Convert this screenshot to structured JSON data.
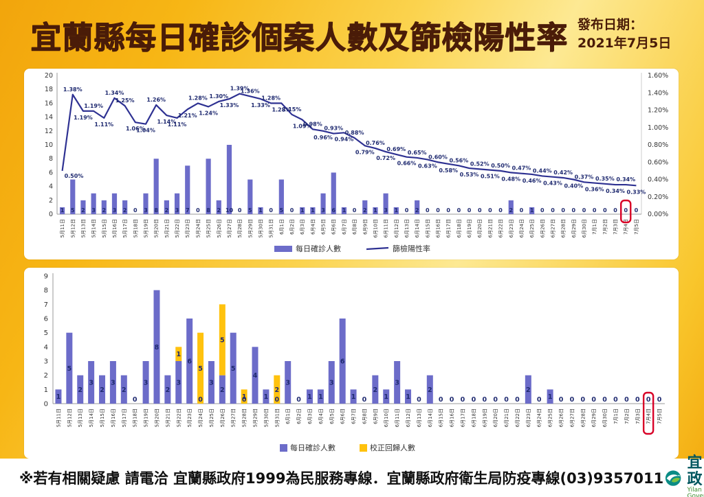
{
  "header": {
    "title": "宜蘭縣每日確診個案人數及篩檢陽性率",
    "publish_label": "發布日期：",
    "publish_date": "2021年7月5日"
  },
  "footer": {
    "note": "※若有相關疑慮 請電洽  宜蘭縣政府1999為民服務專線．宜蘭縣政府衛生局防疫專線(03)9357011",
    "logo_title": "宜蘭縣政府",
    "logo_subtitle": "Yilan County Government"
  },
  "colors": {
    "bar_purple": "#6C6CC9",
    "bar_yellow": "#FFC20E",
    "line_navy": "#2E3192",
    "highlight_red": "#D80027",
    "title_brown": "#4A1C08",
    "label_navy": "#1F2A70",
    "axis_text": "#333333"
  },
  "chart_data": [
    {
      "type": "bar",
      "subtype": "bar+line dual axis",
      "categories": [
        "5月11日",
        "5月12日",
        "5月13日",
        "5月14日",
        "5月15日",
        "5月16日",
        "5月17日",
        "5月18日",
        "5月19日",
        "5月20日",
        "5月21日",
        "5月22日",
        "5月23日",
        "5月24日",
        "5月25日",
        "5月26日",
        "5月27日",
        "5月28日",
        "5月29日",
        "5月30日",
        "5月31日",
        "6月1日",
        "6月2日",
        "6月3日",
        "6月4日",
        "6月5日",
        "6月6日",
        "6月7日",
        "6月8日",
        "6月9日",
        "6月10日",
        "6月11日",
        "6月12日",
        "6月13日",
        "6月14日",
        "6月15日",
        "6月16日",
        "6月17日",
        "6月18日",
        "6月19日",
        "6月20日",
        "6月21日",
        "6月22日",
        "6月23日",
        "6月24日",
        "6月25日",
        "6月26日",
        "6月27日",
        "6月28日",
        "6月29日",
        "6月30日",
        "7月1日",
        "7月2日",
        "7月3日",
        "7月4日",
        "7月5日"
      ],
      "bar_series": {
        "name": "每日確診人數",
        "color": "#6C6CC9",
        "values": [
          1,
          5,
          2,
          3,
          2,
          3,
          2,
          0,
          3,
          8,
          2,
          3,
          7,
          0,
          8,
          2,
          10,
          0,
          5,
          1,
          0,
          5,
          0,
          1,
          1,
          3,
          6,
          1,
          0,
          2,
          1,
          3,
          1,
          0,
          2,
          0,
          0,
          0,
          0,
          0,
          0,
          0,
          0,
          2,
          0,
          1,
          0,
          0,
          0,
          0,
          0,
          0,
          0,
          0,
          0,
          0
        ]
      },
      "line_series": {
        "name": "篩檢陽性率",
        "color": "#2E3192",
        "values_percent": [
          0.5,
          1.38,
          1.19,
          1.19,
          1.11,
          1.34,
          1.25,
          1.06,
          1.04,
          1.26,
          1.14,
          1.11,
          1.21,
          1.28,
          1.24,
          1.3,
          1.33,
          1.39,
          1.36,
          1.33,
          1.28,
          1.28,
          1.15,
          1.09,
          0.98,
          0.96,
          0.93,
          0.94,
          0.88,
          0.79,
          0.76,
          0.72,
          0.69,
          0.66,
          0.65,
          0.63,
          0.6,
          0.58,
          0.56,
          0.53,
          0.52,
          0.51,
          0.5,
          0.48,
          0.47,
          0.46,
          0.44,
          0.43,
          0.42,
          0.4,
          0.37,
          0.36,
          0.35,
          0.34,
          0.34,
          0.33
        ]
      },
      "ylim_left": [
        0,
        20
      ],
      "yticks_left": [
        0,
        2,
        4,
        6,
        8,
        10,
        12,
        14,
        16,
        18,
        20
      ],
      "ylim_right_percent": [
        0,
        1.6
      ],
      "yticks_right": [
        "0.00%",
        "0.20%",
        "0.40%",
        "0.60%",
        "0.80%",
        "1.00%",
        "1.20%",
        "1.40%",
        "1.60%"
      ],
      "legend": [
        "每日確診人數",
        "篩檢陽性率"
      ],
      "legend_position": "bottom",
      "grid": false,
      "highlight_category": "7月4日",
      "highlight_color": "#D80027"
    },
    {
      "type": "bar",
      "subtype": "stacked bar",
      "categories": [
        "5月11日",
        "5月12日",
        "5月13日",
        "5月14日",
        "5月15日",
        "5月16日",
        "5月17日",
        "5月18日",
        "5月19日",
        "5月20日",
        "5月21日",
        "5月22日",
        "5月23日",
        "5月24日",
        "5月25日",
        "5月26日",
        "5月27日",
        "5月28日",
        "5月29日",
        "5月30日",
        "5月31日",
        "6月1日",
        "6月2日",
        "6月3日",
        "6月4日",
        "6月5日",
        "6月6日",
        "6月7日",
        "6月8日",
        "6月9日",
        "6月10日",
        "6月11日",
        "6月12日",
        "6月13日",
        "6月14日",
        "6月15日",
        "6月16日",
        "6月17日",
        "6月18日",
        "6月19日",
        "6月20日",
        "6月21日",
        "6月22日",
        "6月23日",
        "6月24日",
        "6月25日",
        "6月26日",
        "6月27日",
        "6月28日",
        "6月29日",
        "6月30日",
        "7月1日",
        "7月2日",
        "7月3日",
        "7月4日",
        "7月5日"
      ],
      "series": [
        {
          "name": "每日確診人數",
          "color": "#6C6CC9",
          "values": [
            1,
            5,
            2,
            3,
            2,
            3,
            2,
            0,
            3,
            8,
            2,
            3,
            6,
            0,
            3,
            2,
            5,
            0,
            4,
            1,
            0,
            3,
            0,
            1,
            1,
            3,
            6,
            1,
            0,
            2,
            1,
            3,
            1,
            0,
            2,
            0,
            0,
            0,
            0,
            0,
            0,
            0,
            0,
            2,
            0,
            1,
            0,
            0,
            0,
            0,
            0,
            0,
            0,
            0,
            0,
            0
          ]
        },
        {
          "name": "校正回歸人數",
          "color": "#FFC20E",
          "values": [
            0,
            0,
            0,
            0,
            0,
            0,
            0,
            0,
            0,
            0,
            0,
            1,
            0,
            5,
            0,
            5,
            0,
            1,
            0,
            0,
            2,
            0,
            0,
            0,
            0,
            0,
            0,
            0,
            0,
            0,
            0,
            0,
            0,
            0,
            0,
            0,
            0,
            0,
            0,
            0,
            0,
            0,
            0,
            0,
            0,
            0,
            0,
            0,
            0,
            0,
            0,
            0,
            0,
            0,
            0,
            0
          ]
        }
      ],
      "ylim": [
        0,
        9
      ],
      "yticks": [
        0,
        1,
        2,
        3,
        4,
        5,
        6,
        7,
        8,
        9
      ],
      "legend": [
        "每日確診人數",
        "校正回歸人數"
      ],
      "legend_position": "bottom",
      "grid": false,
      "highlight_category": "7月4日",
      "highlight_color": "#D80027"
    }
  ]
}
